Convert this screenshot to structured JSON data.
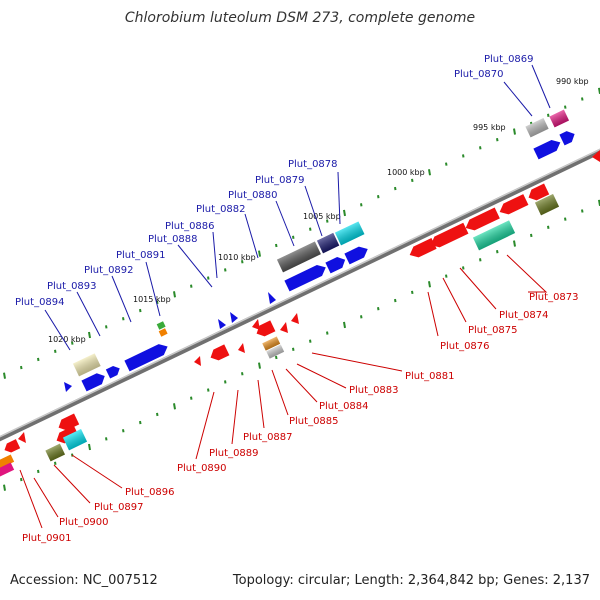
{
  "title": "Chlorobium luteolum DSM 273, complete genome",
  "footer": {
    "accession": "Accession: NC_007512",
    "summary": "Topology: circular; Length: 2,364,842 bp; Genes: 2,137"
  },
  "colors": {
    "backbone": "#808080",
    "tick": "#2a8a2a",
    "label_plus": "#1a1aa8",
    "label_minus": "#cc0000"
  },
  "scale_labels": [
    "990 kbp",
    "995 kbp",
    "1000 kbp",
    "1005 kbp",
    "1010 kbp",
    "1015 kbp",
    "1020 kbp"
  ],
  "genes_plus": [
    "Plut_0869",
    "Plut_0870",
    "Plut_0878",
    "Plut_0879",
    "Plut_0880",
    "Plut_0882",
    "Plut_0886",
    "Plut_0888",
    "Plut_0891",
    "Plut_0892",
    "Plut_0893",
    "Plut_0894"
  ],
  "genes_minus": [
    "Plut_0873",
    "Plut_0874",
    "Plut_0875",
    "Plut_0876",
    "Plut_0881",
    "Plut_0883",
    "Plut_0884",
    "Plut_0885",
    "Plut_0887",
    "Plut_0889",
    "Plut_0890",
    "Plut_0896",
    "Plut_0897",
    "Plut_0900",
    "Plut_0901"
  ]
}
